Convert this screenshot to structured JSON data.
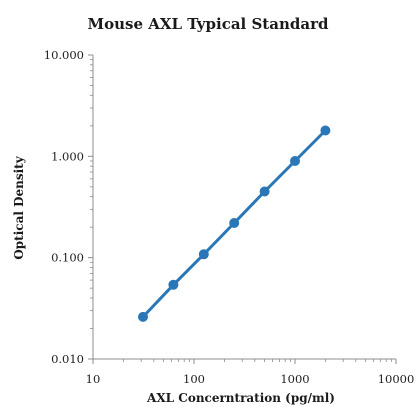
{
  "chart_data": {
    "type": "scatter",
    "title": "Mouse AXL Typical Standard",
    "xlabel": "AXL Concerntration (pg/ml)",
    "ylabel": "Optical Density",
    "x_scale": "log",
    "y_scale": "log",
    "xlim": [
      10,
      10000
    ],
    "ylim": [
      0.01,
      10
    ],
    "x_ticks": [
      "10",
      "100",
      "1000",
      "10000"
    ],
    "y_ticks": [
      "10.000",
      "1.000",
      "0.100",
      "0.010"
    ],
    "grid": false,
    "legend": "none",
    "series": [
      {
        "x": [
          31.25,
          62.5,
          125,
          250,
          500,
          1000,
          2000
        ],
        "y": [
          0.026,
          0.054,
          0.108,
          0.22,
          0.45,
          0.9,
          1.8
        ],
        "color": "#2a77b8",
        "line": "smooth"
      }
    ]
  }
}
